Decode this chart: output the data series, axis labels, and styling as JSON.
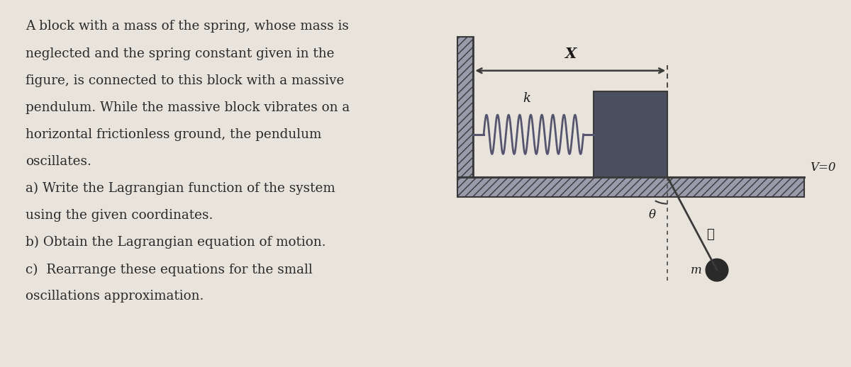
{
  "bg_color": "#e8e4dc",
  "text_color": "#2a2a2a",
  "text_lines": [
    "A block with a mass of the spring, whose mass is",
    "neglected and the spring constant given in the",
    "figure, is connected to this block with a massive",
    "pendulum. While the massive block vibrates on a",
    "horizontal frictionless ground, the pendulum",
    "oscillates.",
    "a) Write the Lagrangian function of the system",
    "using the given coordinates.",
    "b) Obtain the Lagrangian equation of motion.",
    "c)  Rearrange these equations for the small",
    "oscillations approximation."
  ],
  "font_size": 13.2,
  "diagram_color": "#4a5060",
  "hatch_color": "#3a3a3a",
  "hatch_bg": "#999aaa",
  "spring_color": "#555570",
  "bob_color": "#2a2a2a",
  "label_color": "#1a1a1a"
}
